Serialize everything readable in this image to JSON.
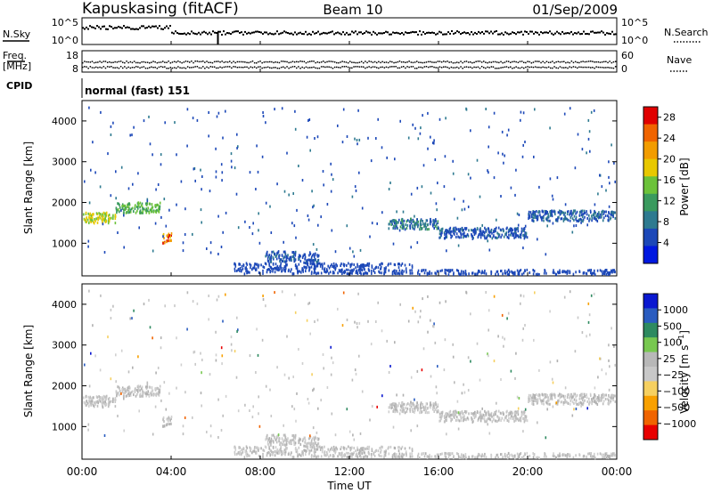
{
  "header": {
    "title": "Kapuskasing (fitACF)",
    "beam": "Beam 10",
    "date": "01/Sep/2009"
  },
  "strip": {
    "nsky_label": "N.Sky",
    "nsky_tick_top": "10^5",
    "nsky_tick_bottom": "10^0",
    "nsearch_label": "N.Search",
    "nsearch_tick_top": "10^5",
    "nsearch_tick_bottom": "10^0",
    "freq_label": "Freq.",
    "freq_unit": "[MHz]",
    "freq_tick_top": "18",
    "freq_tick_bottom": "8",
    "nave_label": "Nave",
    "nave_tick_top": "60",
    "nave_tick_bottom": "0",
    "cpid_label": "CPID",
    "cpid_value": "normal (fast) 151"
  },
  "colors": {
    "power_scale": [
      "#0018e0",
      "#1c48b8",
      "#2e7a90",
      "#3a9a5e",
      "#6cc23a",
      "#e8c800",
      "#f29c00",
      "#f06400",
      "#e00000"
    ],
    "velocity_scale": [
      "#e80000",
      "#f06400",
      "#f8a000",
      "#f6d060",
      "#c8c8c8",
      "#b8b8b8",
      "#78c850",
      "#2e8a60",
      "#2a5cc0",
      "#0a18d0"
    ],
    "power_bins": [
      {
        "color": "#1c48b8",
        "max": 8
      },
      {
        "color": "#2e7a90",
        "max": 12
      },
      {
        "color": "#3a9a5e",
        "max": 16
      },
      {
        "color": "#6cc23a",
        "max": 20
      },
      {
        "color": "#e8c800",
        "max": 24
      },
      {
        "color": "#f29c00",
        "max": 28
      },
      {
        "color": "#e00000",
        "max": 99
      }
    ]
  },
  "chart_data": [
    {
      "type": "heatmap",
      "title": "",
      "xlabel": "Time UT",
      "ylabel": "Slant Range [km]",
      "xlim": [
        0,
        24
      ],
      "ylim": [
        200,
        4500
      ],
      "x_ticks": [
        "00:00",
        "04:00",
        "08:00",
        "12:00",
        "16:00",
        "20:00",
        "00:00"
      ],
      "y_ticks": [
        "1000",
        "2000",
        "3000",
        "4000"
      ],
      "colorbar": {
        "label": "Power [dB]",
        "ticks": [
          "4",
          "8",
          "12",
          "16",
          "20",
          "24",
          "28"
        ],
        "range": [
          0,
          30
        ]
      },
      "features": [
        {
          "x0": 0.0,
          "x1": 1.5,
          "range": 1650,
          "power": 20
        },
        {
          "x0": 1.5,
          "x1": 3.5,
          "range": 1900,
          "power": 16
        },
        {
          "x0": 3.6,
          "x1": 4.0,
          "range": 1150,
          "power": 26
        },
        {
          "x0": 8.2,
          "x1": 9.6,
          "range": 700,
          "power": 6
        },
        {
          "x0": 9.6,
          "x1": 10.6,
          "range": 650,
          "power": 5
        },
        {
          "x0": 13.7,
          "x1": 16.0,
          "range": 1500,
          "power": 10
        },
        {
          "x0": 16.0,
          "x1": 20.0,
          "range": 1280,
          "power": 6
        },
        {
          "x0": 20.0,
          "x1": 24.0,
          "range": 1700,
          "power": 8
        }
      ]
    },
    {
      "type": "heatmap",
      "title": "",
      "xlabel": "Time UT",
      "ylabel": "Slant Range [km]",
      "xlim": [
        0,
        24
      ],
      "ylim": [
        200,
        4500
      ],
      "x_ticks": [
        "00:00",
        "04:00",
        "08:00",
        "12:00",
        "16:00",
        "20:00",
        "00:00"
      ],
      "y_ticks": [
        "1000",
        "2000",
        "3000",
        "4000"
      ],
      "colorbar": {
        "label": "Velocity [m s^-1]",
        "ticks": [
          "1000",
          "500",
          "100",
          "25",
          "−25",
          "−100",
          "−500",
          "−1000"
        ],
        "range": [
          -1200,
          1200
        ]
      }
    }
  ]
}
